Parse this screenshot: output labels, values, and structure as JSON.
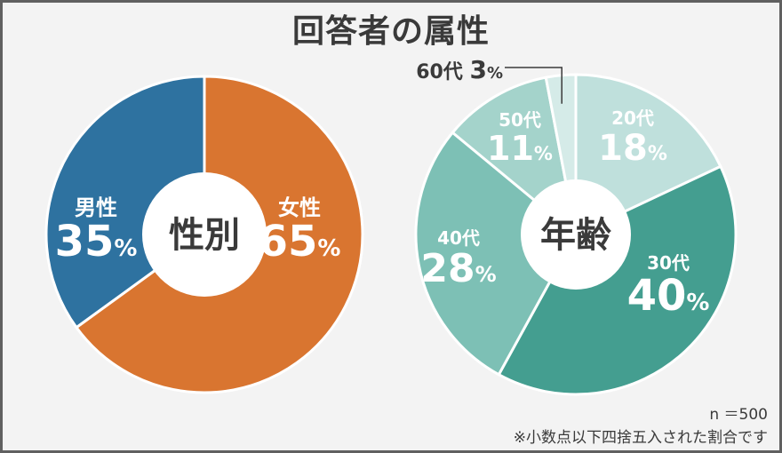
{
  "title": "回答者の属性",
  "footnote_n": "n ＝500",
  "footnote_rounding": "※小数点以下四捨五入された割合です",
  "chart_data": [
    {
      "type": "pie",
      "center_label": "性別",
      "slices": [
        {
          "label": "女性",
          "value": 65,
          "value_text": "65%",
          "color": "#d97530"
        },
        {
          "label": "男性",
          "value": 35,
          "value_text": "35%",
          "color": "#2e72a0"
        }
      ]
    },
    {
      "type": "pie",
      "center_label": "年齢",
      "slices": [
        {
          "label": "20代",
          "value": 18,
          "value_text": "18%",
          "color": "#bfe0dc"
        },
        {
          "label": "30代",
          "value": 40,
          "value_text": "40%",
          "color": "#449e90"
        },
        {
          "label": "40代",
          "value": 28,
          "value_text": "28%",
          "color": "#7dc0b5"
        },
        {
          "label": "50代",
          "value": 11,
          "value_text": "11%",
          "color": "#a4d3cb"
        },
        {
          "label": "60代",
          "value": 3,
          "value_text": "3%",
          "color": "#d5ebe8"
        }
      ]
    }
  ]
}
